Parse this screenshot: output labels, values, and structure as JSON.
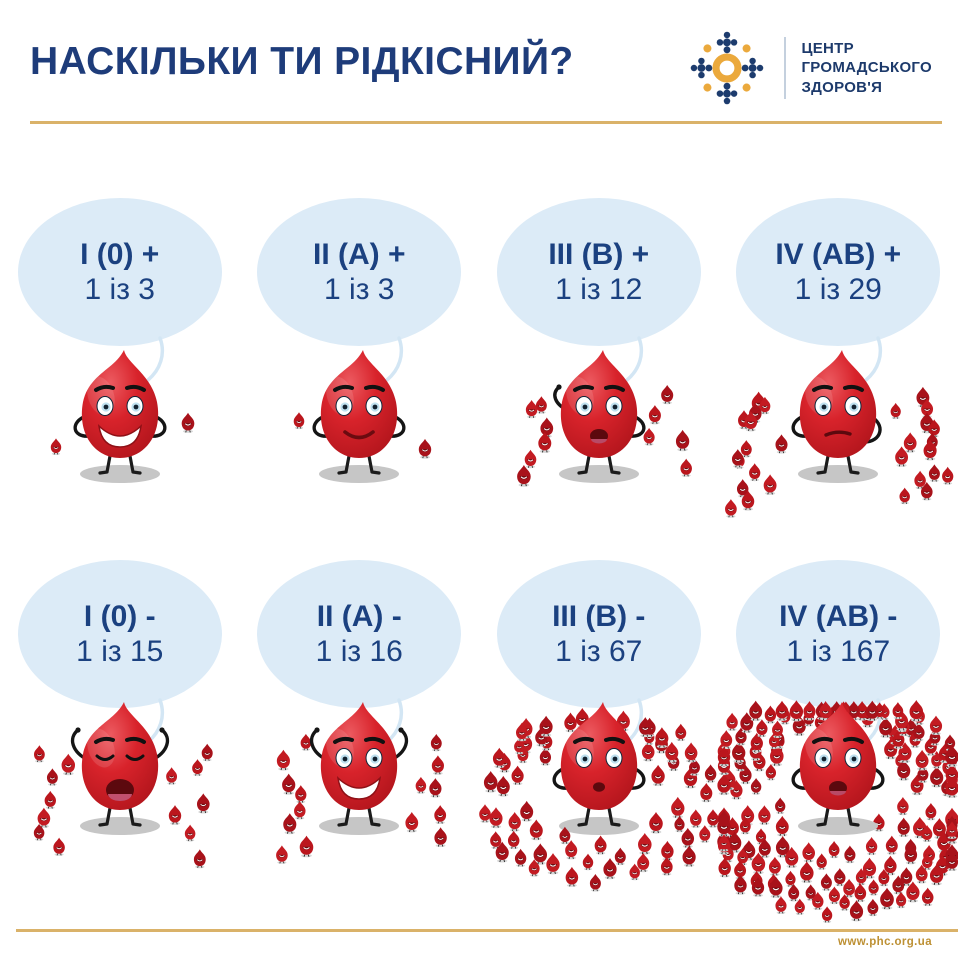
{
  "header": {
    "title": "НАСКІЛЬКИ ТИ РІДКІСНИЙ?",
    "title_color": "#1e3c7a",
    "divider_color": "#dab269",
    "logo": {
      "icon_name": "phc-dots-logo",
      "org_lines": [
        "ЦЕНТР",
        "ГРОМАДСЬКОГО",
        "ЗДОРОВ'Я"
      ],
      "blue": "#1d3a6b",
      "orange": "#eba93c"
    }
  },
  "groups": [
    {
      "type_label": "I (0) +",
      "ratio_label": "1 із 3",
      "total": 3,
      "mood": "grinning"
    },
    {
      "type_label": "II (A) +",
      "ratio_label": "1 із 3",
      "total": 3,
      "mood": "smiling"
    },
    {
      "type_label": "III (B) +",
      "ratio_label": "1 із 12",
      "total": 12,
      "mood": "surprised"
    },
    {
      "type_label": "IV (AB) +",
      "ratio_label": "1 із 29",
      "total": 29,
      "mood": "thinking"
    },
    {
      "type_label": "I (0) -",
      "ratio_label": "1 із 15",
      "total": 15,
      "mood": "yawning"
    },
    {
      "type_label": "II (A) -",
      "ratio_label": "1 із 16",
      "total": 16,
      "mood": "cheering"
    },
    {
      "type_label": "III (B) -",
      "ratio_label": "1 із 67",
      "total": 67,
      "mood": "worried"
    },
    {
      "type_label": "IV (AB) -",
      "ratio_label": "1 із 167",
      "total": 167,
      "mood": "shocked"
    }
  ],
  "chart_data": {
    "type": "table",
    "title": "НАСКІЛЬКИ ТИ РІДКІСНИЙ?",
    "categories": [
      "I (0) +",
      "II (A) +",
      "III (B) +",
      "IV (AB) +",
      "I (0) -",
      "II (A) -",
      "III (B) -",
      "IV (AB) -"
    ],
    "values": [
      3,
      3,
      12,
      29,
      15,
      16,
      67,
      167
    ],
    "value_format": "1 із N (1 person out of N)"
  },
  "footer": {
    "url": "www.phc.org.ua",
    "line_color": "#dab269",
    "url_color": "#bd9033"
  },
  "colors": {
    "bubble_fill": "#dcebf7",
    "bubble_text": "#1b4180",
    "drop_red": "#d8232b",
    "drop_dark_edge": "#b2151c",
    "shadow_gray": "#c6c6c6",
    "small_drop_variants": [
      "#bb161d",
      "#a8121a",
      "#c31b22"
    ]
  }
}
